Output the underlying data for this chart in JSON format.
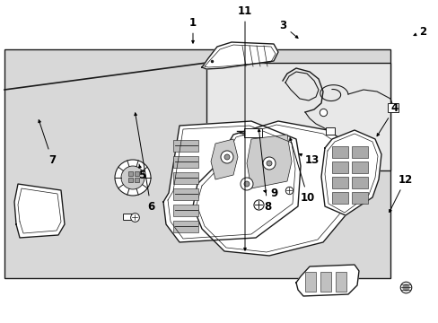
{
  "bg_color": "#ffffff",
  "gray_bg": "#d8d8d8",
  "line_color": "#1a1a1a",
  "fig_width": 4.89,
  "fig_height": 3.6,
  "dpi": 100,
  "label_fontsize": 8.5,
  "label_fontsize_small": 7.5
}
